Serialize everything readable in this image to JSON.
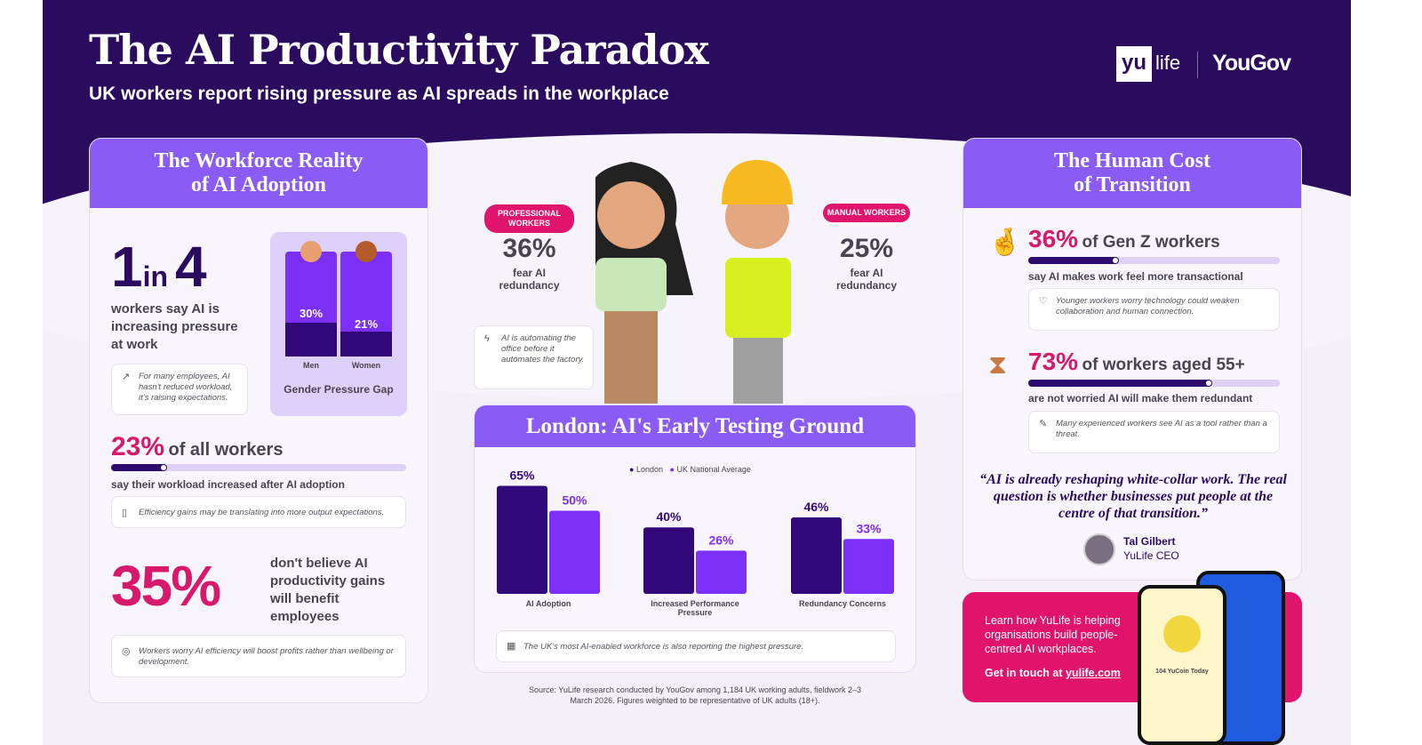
{
  "header": {
    "title": "The AI Productivity Paradox",
    "subtitle": "UK workers report rising pressure as AI spreads in the workplace",
    "logo_yulife": "yu life",
    "logo_yougov": "YouGov"
  },
  "left": {
    "title_line1": "The Workforce Reality",
    "title_line2": "of AI Adoption",
    "stat1": {
      "big": "1",
      "mid": "in",
      "big2": "4",
      "text": "workers say AI is increasing pressure at work",
      "note": "For many employees, AI hasn't reduced workload, it's raising expectations."
    },
    "gender": {
      "title": "Gender Pressure Gap",
      "men_label": "Men",
      "women_label": "Women",
      "men_value": "30%",
      "women_value": "21%"
    },
    "stat2": {
      "value": "23%",
      "label": "of all workers",
      "progress": 23,
      "text": "say their workload increased after AI adoption",
      "note": "Efficiency gains may be translating into more output expectations."
    },
    "stat3": {
      "value": "35%",
      "text": "don't believe AI productivity gains will benefit employees",
      "note": "Workers worry AI efficiency will boost profits rather than wellbeing or development."
    }
  },
  "center": {
    "professional": {
      "pill": "PROFESSIONAL WORKERS",
      "value": "36%",
      "text": "fear AI redundancy"
    },
    "manual": {
      "pill": "MANUAL WORKERS",
      "value": "25%",
      "text": "fear AI redundancy"
    },
    "note": "AI is automating the office before it automates the factory.",
    "london_title": "London: AI's Early Testing Ground",
    "chart_note": "The UK's most AI-enabled workforce is also reporting the highest pressure.",
    "source": "Source: YuLife research conducted by YouGov among 1,184 UK working adults, fieldwork 2–3 March 2026. Figures weighted to be representative of UK adults (18+)."
  },
  "right": {
    "title_line1": "The Human Cost",
    "title_line2": "of Transition",
    "stat1": {
      "value": "36%",
      "label": "of Gen Z workers",
      "progress": 36,
      "text": "say AI makes work feel more transactional",
      "note": "Younger workers worry technology could weaken collaboration and human connection."
    },
    "stat2": {
      "value": "73%",
      "label": "of workers aged 55+",
      "progress": 73,
      "text": "are not worried AI will make them redundant",
      "note": "Many experienced workers see AI as a tool rather than a threat."
    },
    "quote": "“AI is already reshaping white-collar work. The real question is whether businesses put people at the centre of that transition.”",
    "person": "Tal Gilbert",
    "role": "YuLife CEO",
    "cta": "Learn how YuLife is helping organisations build people-centred AI workplaces.",
    "cta_prefix": "Get in touch at ",
    "cta_link": "yulife.com",
    "app_text": "104 YuCoin Today"
  },
  "colors": {
    "navy": "#2a0b5e",
    "purple": "#8a5cf5",
    "pink": "#d6196b",
    "dark_bar": "#32077a",
    "light_bar": "#7b2ff7"
  },
  "chart_data": {
    "type": "bar",
    "title": "London: AI's Early Testing Ground",
    "categories": [
      "AI Adoption",
      "Increased Performance Pressure",
      "Redundancy Concerns"
    ],
    "series": [
      {
        "name": "London",
        "values": [
          65,
          40,
          46
        ],
        "color": "#32077a"
      },
      {
        "name": "UK National Average",
        "values": [
          50,
          26,
          33
        ],
        "color": "#7b2ff7"
      }
    ],
    "labels": [
      [
        "65%",
        "40%",
        "46%"
      ],
      [
        "50%",
        "26%",
        "33%"
      ]
    ],
    "ylim": [
      0,
      70
    ],
    "legend": "top",
    "grid": false,
    "unit": "%"
  },
  "gender_chart": {
    "type": "bar",
    "categories": [
      "Men",
      "Women"
    ],
    "values": [
      30,
      21
    ]
  }
}
